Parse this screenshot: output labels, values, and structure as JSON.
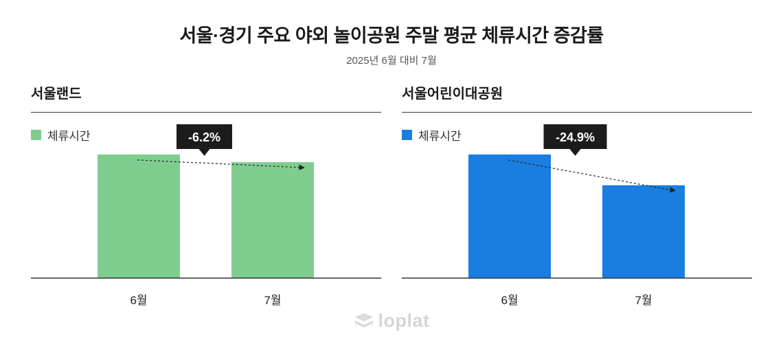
{
  "title": "서울·경기 주요 야외 놀이공원 주말 평균 체류시간 증감률",
  "subtitle": "2025년 6월 대비 7월",
  "watermark": "loplat",
  "chart_data": [
    {
      "type": "bar",
      "title": "서울랜드",
      "categories": [
        "6월",
        "7월"
      ],
      "series": [
        {
          "name": "체류시간",
          "values": [
            100,
            93.8
          ]
        }
      ],
      "ylim": [
        0,
        100
      ],
      "color": "#7ecd8f",
      "change_label": "-6.2%",
      "grid": false,
      "legend_position": "top-left"
    },
    {
      "type": "bar",
      "title": "서울어린이대공원",
      "categories": [
        "6월",
        "7월"
      ],
      "series": [
        {
          "name": "체류시간",
          "values": [
            100,
            75.1
          ]
        }
      ],
      "ylim": [
        0,
        100
      ],
      "color": "#1a7de0",
      "change_label": "-24.9%",
      "grid": false,
      "legend_position": "top-left"
    }
  ]
}
